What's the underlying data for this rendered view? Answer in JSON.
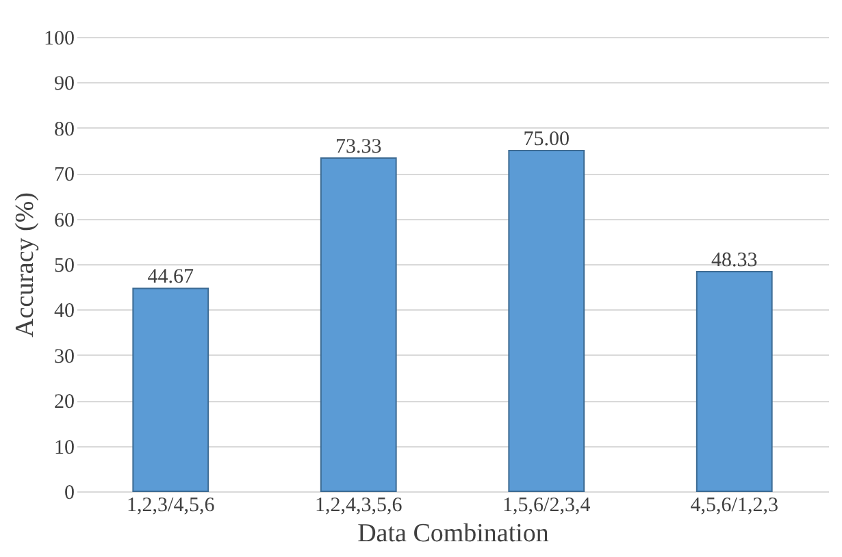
{
  "chart_data": {
    "type": "bar",
    "xlabel": "Data Combination",
    "ylabel": "Accuracy (%)",
    "categories": [
      "1,2,3/4,5,6",
      "1,2,4,3,5,6",
      "1,5,6/2,3,4",
      "4,5,6/1,2,3"
    ],
    "values": [
      44.67,
      73.33,
      75.0,
      48.33
    ],
    "value_labels": [
      "44.67",
      "73.33",
      "75.00",
      "48.33"
    ],
    "color": "#5b9bd5",
    "ylim": [
      0,
      100
    ],
    "yticks": [
      0,
      10,
      20,
      30,
      40,
      50,
      60,
      70,
      80,
      90,
      100
    ],
    "grid": "y"
  }
}
